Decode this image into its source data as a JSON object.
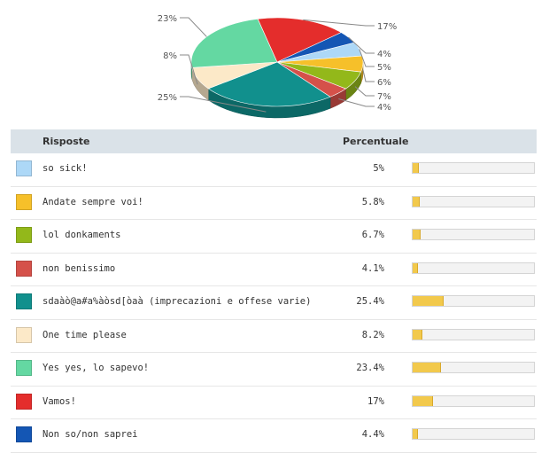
{
  "chart_data": {
    "type": "pie",
    "slices": [
      {
        "label": "so sick!",
        "value": 5,
        "pie_label": "5%",
        "color": "#add8f7"
      },
      {
        "label": "Andate sempre voi!",
        "value": 5.8,
        "pie_label": "6%",
        "color": "#f6c02a"
      },
      {
        "label": "lol donkaments",
        "value": 6.7,
        "pie_label": "7%",
        "color": "#93b81a"
      },
      {
        "label": "non benissimo",
        "value": 4.1,
        "pie_label": "4%",
        "color": "#d5514a"
      },
      {
        "label": "sdaàò@a#a%àòsd[òaà (imprecazioni e offese varie)",
        "value": 25.4,
        "pie_label": "25%",
        "color": "#11908d"
      },
      {
        "label": "One time please",
        "value": 8.2,
        "pie_label": "8%",
        "color": "#fce9c8"
      },
      {
        "label": "Yes yes, lo sapevo!",
        "value": 23.4,
        "pie_label": "23%",
        "color": "#64d8a2"
      },
      {
        "label": "Vamos!",
        "value": 17,
        "pie_label": "17%",
        "color": "#e42d2c"
      },
      {
        "label": "Non so/non saprei",
        "value": 4.4,
        "pie_label": "4%",
        "color": "#1456b4"
      }
    ]
  },
  "table": {
    "header_responses": "Risposte",
    "header_percentage": "Percentuale",
    "rows": [
      {
        "label": "so sick!",
        "percent_text": "5%",
        "percent": 5,
        "color": "#add8f7"
      },
      {
        "label": "Andate sempre voi!",
        "percent_text": "5.8%",
        "percent": 5.8,
        "color": "#f6c02a"
      },
      {
        "label": "lol donkaments",
        "percent_text": "6.7%",
        "percent": 6.7,
        "color": "#93b81a"
      },
      {
        "label": "non benissimo",
        "percent_text": "4.1%",
        "percent": 4.1,
        "color": "#d5514a"
      },
      {
        "label": "sdaàò@a#a%àòsd[òaà (imprecazioni e offese varie)",
        "percent_text": "25.4%",
        "percent": 25.4,
        "color": "#11908d"
      },
      {
        "label": "One time please",
        "percent_text": "8.2%",
        "percent": 8.2,
        "color": "#fce9c8"
      },
      {
        "label": "Yes yes, lo sapevo!",
        "percent_text": "23.4%",
        "percent": 23.4,
        "color": "#64d8a2"
      },
      {
        "label": "Vamos!",
        "percent_text": "17%",
        "percent": 17,
        "color": "#e42d2c"
      },
      {
        "label": "Non so/non saprei",
        "percent_text": "4.4%",
        "percent": 4.4,
        "color": "#1456b4"
      }
    ]
  }
}
